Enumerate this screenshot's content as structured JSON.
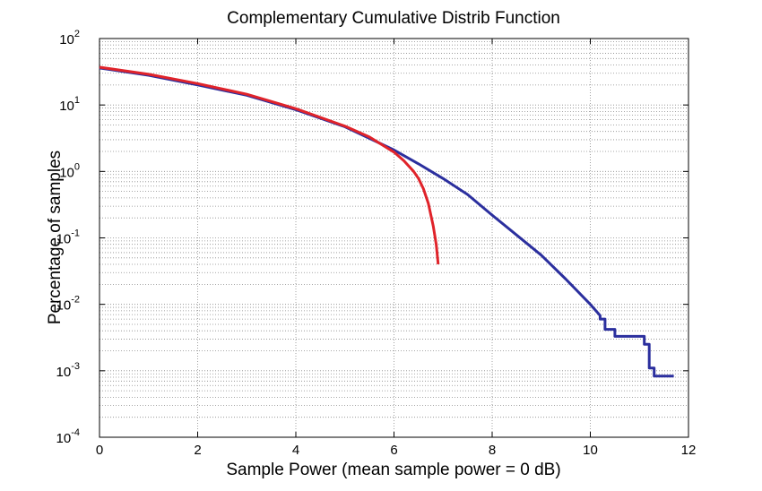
{
  "chart_data": {
    "type": "line",
    "title": "Complementary Cumulative Distrib Function",
    "xlabel": "Sample Power (mean sample power = 0 dB)",
    "ylabel": "Percentage of samples",
    "xlim": [
      0,
      12
    ],
    "ylim": [
      0.0001,
      100
    ],
    "yscale": "log",
    "grid": true,
    "x_ticks": [
      0,
      2,
      4,
      6,
      8,
      10,
      12
    ],
    "x_tick_labels": [
      "0",
      "2",
      "4",
      "6",
      "8",
      "10",
      "12"
    ],
    "y_ticks": [
      {
        "value": 0.0001,
        "base": "10",
        "exp": "-4"
      },
      {
        "value": 0.001,
        "base": "10",
        "exp": "-3"
      },
      {
        "value": 0.01,
        "base": "10",
        "exp": "-2"
      },
      {
        "value": 0.1,
        "base": "10",
        "exp": "-1"
      },
      {
        "value": 1,
        "base": "10",
        "exp": "0"
      },
      {
        "value": 10,
        "base": "10",
        "exp": "1"
      },
      {
        "value": 100,
        "base": "10",
        "exp": "2"
      }
    ],
    "series": [
      {
        "color": "#2b2f9e",
        "points": [
          [
            0,
            36
          ],
          [
            1,
            28
          ],
          [
            2,
            20
          ],
          [
            3,
            14
          ],
          [
            4,
            8.5
          ],
          [
            5,
            4.7
          ],
          [
            6,
            2.1
          ],
          [
            6.5,
            1.3
          ],
          [
            7,
            0.78
          ],
          [
            7.5,
            0.45
          ],
          [
            8,
            0.22
          ],
          [
            8.5,
            0.11
          ],
          [
            9,
            0.055
          ],
          [
            9.5,
            0.024
          ],
          [
            10,
            0.01
          ],
          [
            10.2,
            0.0068
          ],
          [
            10.2,
            0.006
          ],
          [
            10.3,
            0.006
          ],
          [
            10.3,
            0.0042
          ],
          [
            10.5,
            0.0042
          ],
          [
            10.5,
            0.0033
          ],
          [
            11.1,
            0.0033
          ],
          [
            11.1,
            0.0025
          ],
          [
            11.2,
            0.0025
          ],
          [
            11.2,
            0.0011
          ],
          [
            11.3,
            0.0011
          ],
          [
            11.3,
            0.00083
          ],
          [
            11.7,
            0.00083
          ]
        ]
      },
      {
        "color": "#e0232a",
        "points": [
          [
            0,
            37
          ],
          [
            1,
            29
          ],
          [
            2,
            21
          ],
          [
            3,
            14.5
          ],
          [
            4,
            8.8
          ],
          [
            5,
            4.8
          ],
          [
            5.5,
            3.3
          ],
          [
            6,
            1.95
          ],
          [
            6.2,
            1.45
          ],
          [
            6.4,
            1.0
          ],
          [
            6.5,
            0.78
          ],
          [
            6.6,
            0.55
          ],
          [
            6.7,
            0.33
          ],
          [
            6.8,
            0.15
          ],
          [
            6.86,
            0.08
          ],
          [
            6.9,
            0.04
          ]
        ]
      }
    ]
  }
}
